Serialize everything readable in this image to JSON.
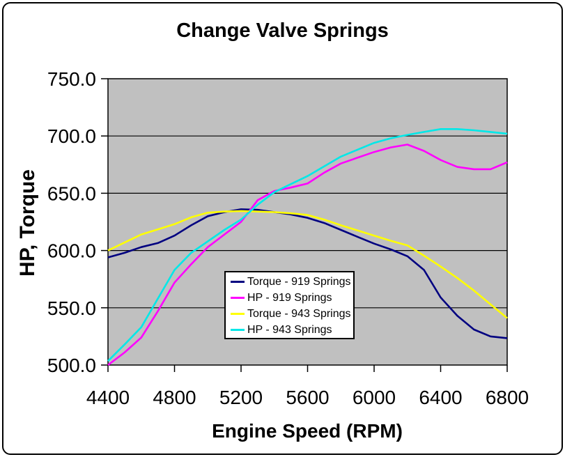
{
  "chart_data": {
    "type": "line",
    "title": "Change Valve Springs",
    "xlabel": "Engine Speed (RPM)",
    "ylabel": "HP, Torque",
    "xlim": [
      4400,
      6800
    ],
    "ylim": [
      500,
      750
    ],
    "grid": "horizontal-black-gridlines-every-50",
    "legend_position": "inside-plot-bottom-center",
    "plot_bg_color": "#C0C0C0",
    "gridline_color": "#000000",
    "axis_color": "#000000",
    "x_tick_labels": [
      "4400",
      "4800",
      "5200",
      "5600",
      "6000",
      "6400",
      "6800"
    ],
    "y_tick_labels": [
      "750.0",
      "700.0",
      "650.0",
      "600.0",
      "550.0",
      "500.0"
    ],
    "x": [
      4400,
      4500,
      4600,
      4700,
      4800,
      4900,
      5000,
      5100,
      5200,
      5300,
      5400,
      5500,
      5600,
      5700,
      5800,
      5900,
      6000,
      6100,
      6200,
      6300,
      6400,
      6500,
      6600,
      6700,
      6800
    ],
    "series": [
      {
        "name": "Torque - 919 Springs",
        "color": "#000080",
        "values": [
          594,
          598,
          603,
          606.5,
          613,
          622,
          630,
          633.5,
          636,
          635.5,
          633.5,
          631.5,
          628.5,
          624,
          618,
          612,
          606,
          601,
          595,
          583,
          559,
          543,
          531,
          525,
          523.5
        ]
      },
      {
        "name": "HP - 919 Springs",
        "color": "#FF00FF",
        "values": [
          500,
          511,
          524,
          547,
          572,
          588,
          603,
          614,
          625,
          644,
          652,
          655,
          658.5,
          668,
          676,
          681,
          686,
          690,
          692.5,
          687,
          679,
          673,
          671,
          671,
          677
        ]
      },
      {
        "name": "Torque - 943 Springs",
        "color": "#FFFF00",
        "values": [
          600,
          607,
          614,
          618.5,
          623,
          629,
          633,
          634,
          634.5,
          634,
          633.5,
          632.5,
          631,
          627,
          622,
          617.5,
          613,
          608.5,
          604.5,
          595.5,
          586,
          576,
          565,
          553,
          541
        ]
      },
      {
        "name": "HP - 943 Springs",
        "color": "#00E8E8",
        "values": [
          503.5,
          518,
          533,
          558,
          583,
          598,
          608,
          618,
          627,
          640,
          651,
          658,
          665,
          673.5,
          682,
          688,
          694,
          698,
          701,
          703.5,
          706,
          706,
          705,
          703.5,
          702
        ]
      }
    ]
  }
}
